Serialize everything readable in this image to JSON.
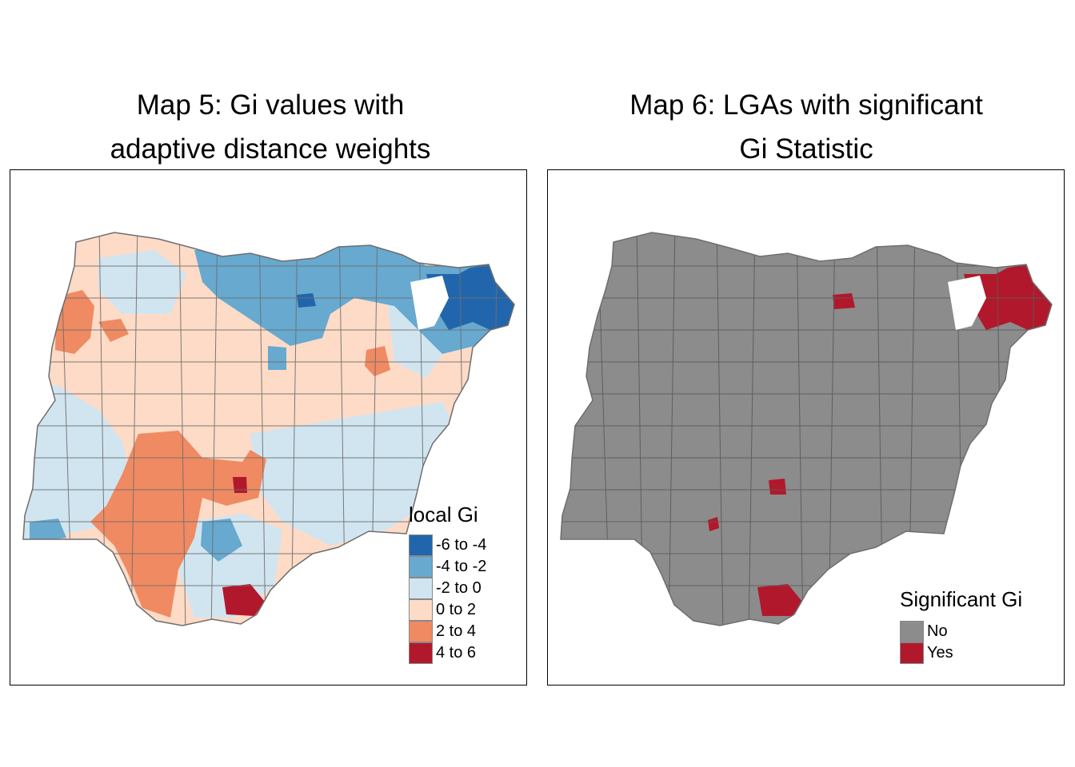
{
  "left_map": {
    "title_line1": "Map 5: Gi values with",
    "title_line2": "adaptive distance weights",
    "legend": {
      "title": "local Gi",
      "items": [
        {
          "label": "-6 to -4",
          "color": "#2166ac"
        },
        {
          "label": "-4 to -2",
          "color": "#67a9cf"
        },
        {
          "label": "-2 to 0",
          "color": "#d1e5f0"
        },
        {
          "label": "0 to 2",
          "color": "#fddbc7"
        },
        {
          "label": "2 to 4",
          "color": "#ef8a62"
        },
        {
          "label": "4 to 6",
          "color": "#b2182b"
        }
      ]
    }
  },
  "right_map": {
    "title_line1": "Map 6: LGAs with significant",
    "title_line2": "Gi Statistic",
    "legend": {
      "title": "Significant Gi",
      "items": [
        {
          "label": "No",
          "color": "#8c8c8c"
        },
        {
          "label": "Yes",
          "color": "#b2182b"
        }
      ]
    }
  },
  "boundary_color": "#6e6e6e"
}
